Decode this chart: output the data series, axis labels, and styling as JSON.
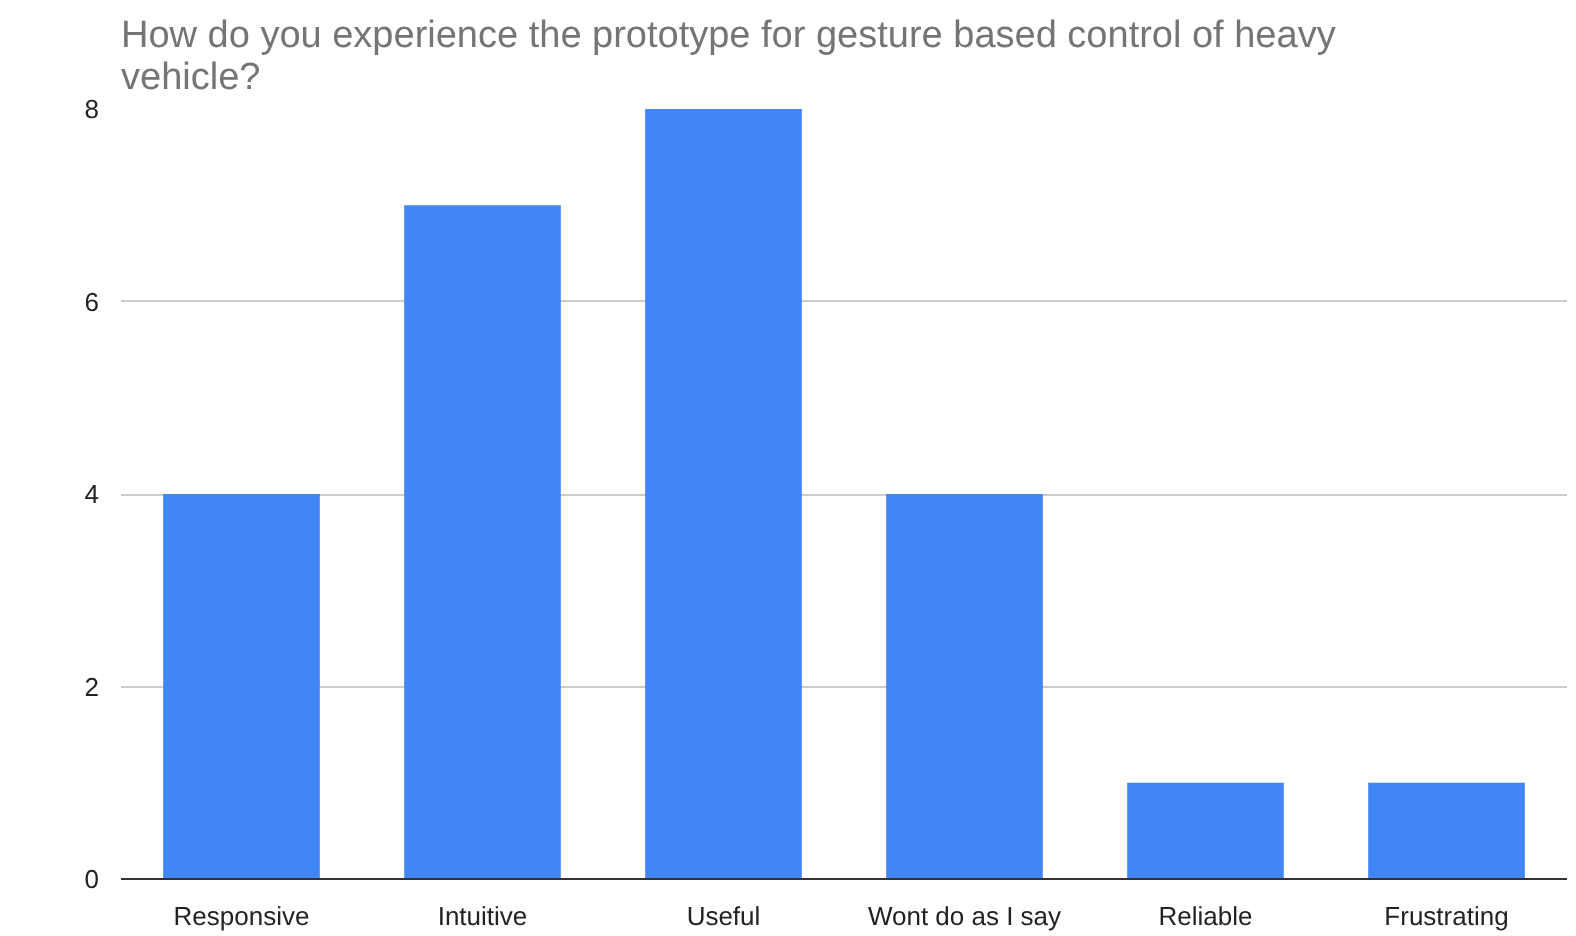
{
  "chart_data": {
    "type": "bar",
    "title": "How do you experience the prototype for gesture based control of heavy vehicle?",
    "categories": [
      "Responsive",
      "Intuitive",
      "Useful",
      "Wont do as I say",
      "Reliable",
      "Frustrating"
    ],
    "values": [
      4,
      7,
      8,
      4,
      1,
      1
    ],
    "color": "#4285f4",
    "ylim": [
      0,
      8
    ],
    "yticks": [
      0,
      2,
      4,
      6,
      8
    ],
    "grid": "y"
  }
}
